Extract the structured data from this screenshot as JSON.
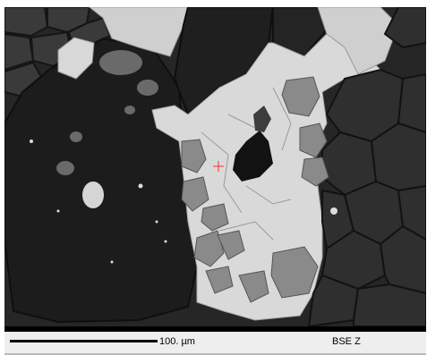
{
  "image": {
    "description_icon": "bse-micrograph",
    "colors": {
      "dark_phase": "#2b2b2b",
      "mid_phase": "#8a8a8a",
      "bright_phase": "#d9d9d9",
      "crosshair": "#ff2a2a"
    }
  },
  "scale_bar": {
    "label": "100. µm"
  },
  "detector": {
    "label": "BSE Z"
  }
}
